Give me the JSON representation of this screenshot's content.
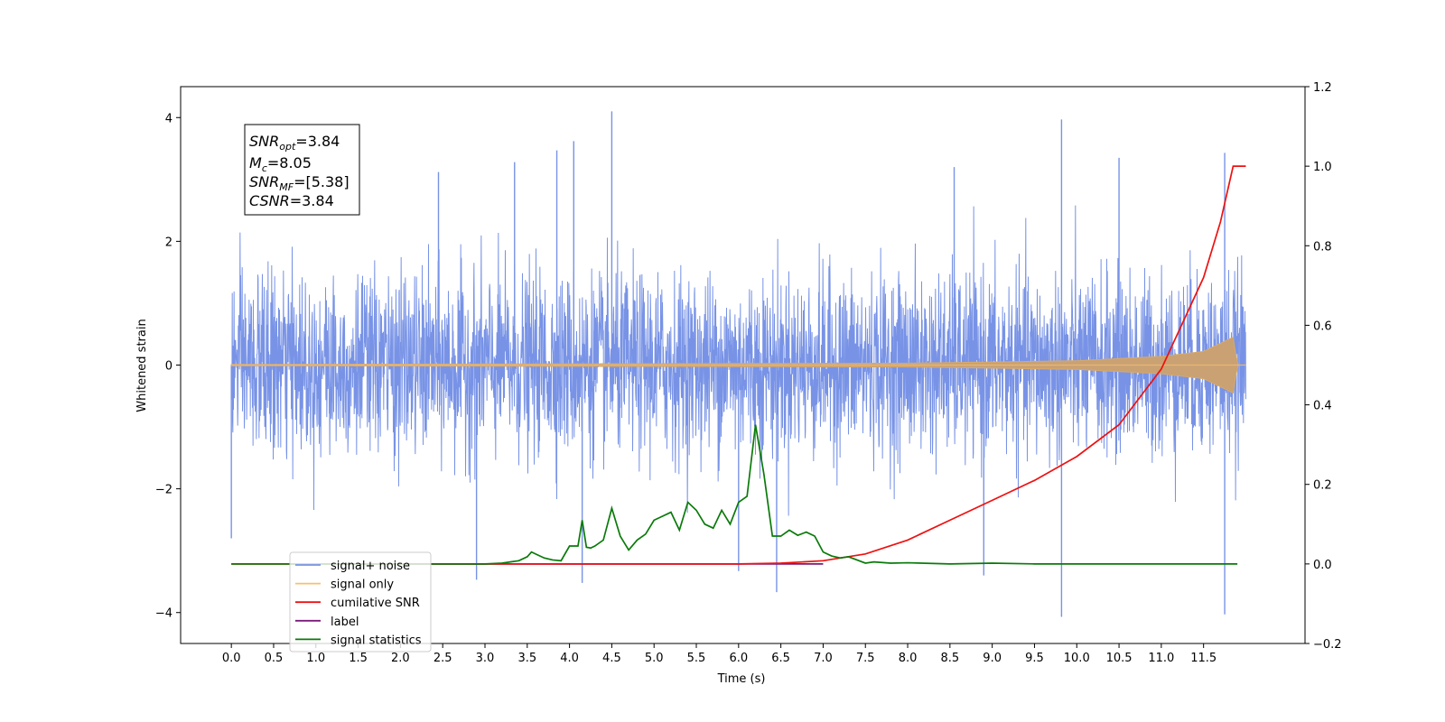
{
  "chart_data": {
    "type": "line",
    "xlabel": "Time (s)",
    "ylabel": "Whitened strain",
    "xlim": [
      -0.6,
      12.7
    ],
    "ylim_left": [
      -4.5,
      4.5
    ],
    "ylim_right": [
      -0.2,
      1.2
    ],
    "x_ticks": [
      "0.0",
      "0.5",
      "1.0",
      "1.5",
      "2.0",
      "2.5",
      "3.0",
      "3.5",
      "4.0",
      "4.5",
      "5.0",
      "5.5",
      "6.0",
      "6.5",
      "7.0",
      "7.5",
      "8.0",
      "8.5",
      "9.0",
      "9.5",
      "10.0",
      "10.5",
      "11.0",
      "11.5"
    ],
    "y_ticks_left": [
      "−4",
      "−2",
      "0",
      "2",
      "4"
    ],
    "y_ticks_right": [
      "−0.2",
      "0.0",
      "0.2",
      "0.4",
      "0.6",
      "0.8",
      "1.0",
      "1.2"
    ],
    "grid": false,
    "legend_position": "lower-left",
    "annotation": {
      "snr_opt": {
        "label": "SNR",
        "sub": "opt",
        "value": "=3.84"
      },
      "mc": {
        "label": "M",
        "sub": "c",
        "value": "=8.05"
      },
      "snr_mf": {
        "label": "SNR",
        "sub": "MF",
        "value": "=[5.38]"
      },
      "csnr": {
        "label": "CSNR",
        "sub": "",
        "value": "=3.84"
      }
    },
    "series": [
      {
        "name": "signal+ noise",
        "color": "#7893e6",
        "axis": "left",
        "x_range": [
          0.0,
          12.0
        ],
        "noise_sigma": 0.72,
        "spikes": [
          {
            "x": 4.5,
            "y": 4.1
          },
          {
            "x": 9.82,
            "y": 3.97
          },
          {
            "x": 4.05,
            "y": 3.62
          },
          {
            "x": 3.85,
            "y": 3.47
          },
          {
            "x": 11.75,
            "y": 3.43
          },
          {
            "x": 10.5,
            "y": 3.35
          },
          {
            "x": 3.35,
            "y": 3.28
          },
          {
            "x": 8.55,
            "y": 3.2
          },
          {
            "x": 2.45,
            "y": 3.12
          },
          {
            "x": 9.82,
            "y": -4.07
          },
          {
            "x": 11.75,
            "y": -4.03
          },
          {
            "x": 6.45,
            "y": -3.67
          },
          {
            "x": 4.15,
            "y": -3.52
          },
          {
            "x": 2.9,
            "y": -3.47
          },
          {
            "x": 8.9,
            "y": -3.4
          },
          {
            "x": 6.0,
            "y": -3.33
          },
          {
            "x": 0.0,
            "y": -2.8
          }
        ]
      },
      {
        "name": "signal only",
        "color": "#f5c16c",
        "axis": "left",
        "x_range": [
          0.0,
          12.0
        ],
        "envelope": [
          {
            "x": 0.0,
            "y": 0.01
          },
          {
            "x": 8.0,
            "y": 0.03
          },
          {
            "x": 10.0,
            "y": 0.07
          },
          {
            "x": 11.0,
            "y": 0.14
          },
          {
            "x": 11.5,
            "y": 0.22
          },
          {
            "x": 11.85,
            "y": 0.45
          },
          {
            "x": 11.9,
            "y": 0.0
          },
          {
            "x": 12.0,
            "y": 0.0
          }
        ]
      },
      {
        "name": "cumilative SNR",
        "color": "#ee1111",
        "axis": "right",
        "x": [
          0.0,
          6.0,
          6.5,
          7.0,
          7.5,
          8.0,
          8.5,
          9.0,
          9.5,
          10.0,
          10.5,
          11.0,
          11.5,
          11.7,
          11.85,
          11.9,
          12.0
        ],
        "values": [
          0.0,
          0.0,
          0.002,
          0.008,
          0.025,
          0.06,
          0.11,
          0.16,
          0.21,
          0.27,
          0.35,
          0.49,
          0.72,
          0.86,
          1.0,
          1.0,
          1.0
        ]
      },
      {
        "name": "label",
        "color": "#7b1a7b",
        "axis": "right",
        "x": [
          0.7,
          7.0
        ],
        "values": [
          0.0,
          0.0
        ]
      },
      {
        "name": "signal statistics",
        "color": "#0a7a0a",
        "axis": "right",
        "x": [
          0.0,
          2.8,
          3.0,
          3.2,
          3.3,
          3.4,
          3.5,
          3.55,
          3.6,
          3.7,
          3.8,
          3.9,
          4.0,
          4.1,
          4.15,
          4.2,
          4.25,
          4.3,
          4.4,
          4.5,
          4.6,
          4.7,
          4.8,
          4.9,
          5.0,
          5.1,
          5.2,
          5.3,
          5.4,
          5.5,
          5.6,
          5.7,
          5.8,
          5.9,
          6.0,
          6.1,
          6.2,
          6.3,
          6.4,
          6.5,
          6.6,
          6.7,
          6.8,
          6.9,
          7.0,
          7.1,
          7.2,
          7.3,
          7.4,
          7.5,
          7.6,
          7.8,
          8.0,
          8.5,
          9.0,
          9.5,
          10.0,
          11.0,
          11.5,
          11.9
        ],
        "values": [
          0.0,
          0.0,
          0.0,
          0.002,
          0.005,
          0.008,
          0.018,
          0.03,
          0.025,
          0.015,
          0.01,
          0.008,
          0.045,
          0.045,
          0.11,
          0.042,
          0.04,
          0.045,
          0.06,
          0.14,
          0.07,
          0.035,
          0.06,
          0.075,
          0.11,
          0.12,
          0.13,
          0.085,
          0.155,
          0.135,
          0.1,
          0.09,
          0.135,
          0.1,
          0.155,
          0.17,
          0.35,
          0.225,
          0.07,
          0.07,
          0.085,
          0.072,
          0.08,
          0.07,
          0.03,
          0.02,
          0.015,
          0.018,
          0.01,
          0.002,
          0.005,
          0.002,
          0.003,
          0.0,
          0.002,
          0.0,
          0.0,
          0.0,
          0.0,
          0.0
        ]
      }
    ]
  }
}
